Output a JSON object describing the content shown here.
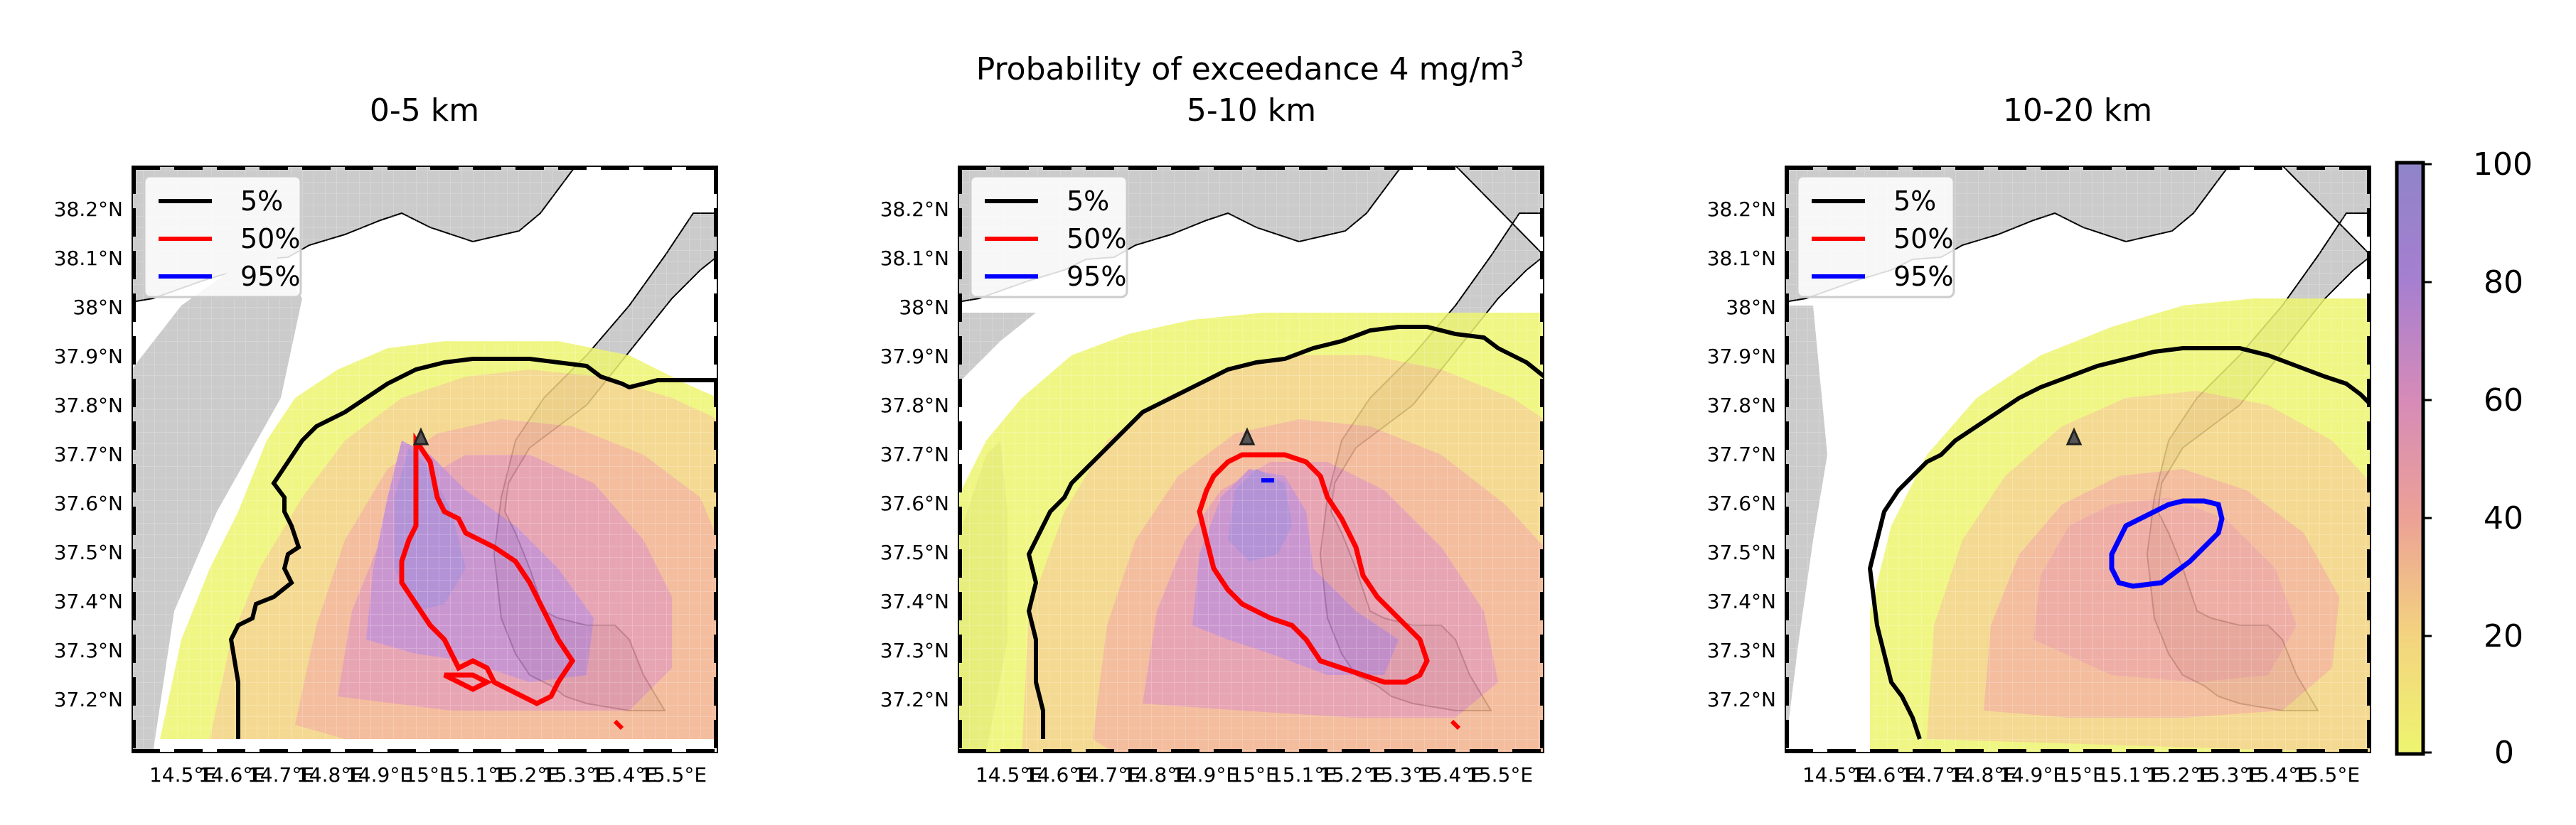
{
  "figure": {
    "suptitle": "Probability of exceedance 4 mg/m",
    "suptitle_sup": "3",
    "panels": [
      {
        "title": "0-5 km"
      },
      {
        "title": "5-10 km"
      },
      {
        "title": "10-20 km"
      }
    ],
    "lat_ticks": [
      "38.2°N",
      "38.1°N",
      "38°N",
      "37.9°N",
      "37.8°N",
      "37.7°N",
      "37.6°N",
      "37.5°N",
      "37.4°N",
      "37.3°N",
      "37.2°N"
    ],
    "lon_ticks": [
      "14.5°E",
      "14.6°E",
      "14.7°E",
      "14.8°E",
      "14.9°E",
      "15°E",
      "15.1°E",
      "15.2°E",
      "15.3°E",
      "15.4°E",
      "15.5°E"
    ],
    "legend": [
      {
        "label": "5%",
        "color": "#000000"
      },
      {
        "label": "50%",
        "color": "#ff0000"
      },
      {
        "label": "95%",
        "color": "#0000ff"
      }
    ],
    "colorbar": {
      "ticks": [
        "100",
        "80",
        "60",
        "40",
        "20",
        "0"
      ],
      "colors_low_to_high": [
        "#eef56f",
        "#f3e07a",
        "#f4c886",
        "#f1b28e",
        "#eca196",
        "#e395a6",
        "#d68bb8",
        "#c184c8",
        "#a67fd0",
        "#8f84c9"
      ]
    },
    "land_color": "#cbcbcb",
    "vent_marker": "triangle"
  }
}
